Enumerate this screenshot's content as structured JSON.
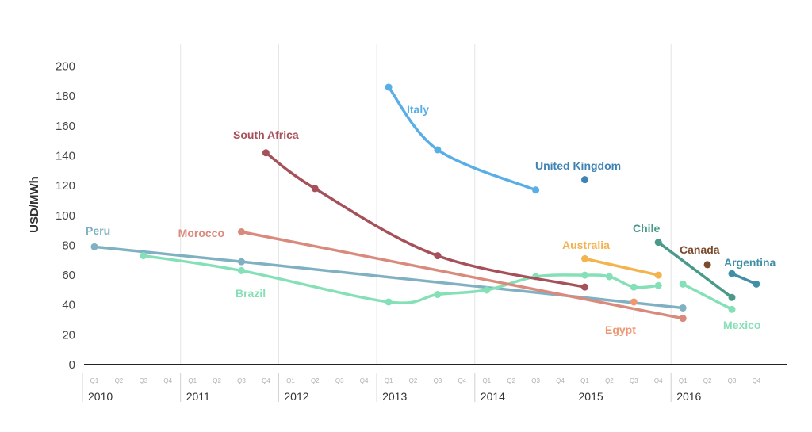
{
  "chart_data": {
    "type": "line",
    "ylabel": "USD/MWh",
    "ylim": [
      0,
      200
    ],
    "yticks": [
      0,
      20,
      40,
      60,
      80,
      100,
      120,
      140,
      160,
      180,
      200
    ],
    "x_years": [
      "2010",
      "2011",
      "2012",
      "2013",
      "2014",
      "2015",
      "2016"
    ],
    "x_quarters": [
      "Q1",
      "Q2",
      "Q3",
      "Q4"
    ],
    "grid": "vertical year lines",
    "series": [
      {
        "name": "Peru",
        "color": "#7fb1c2",
        "points": [
          [
            "2010 Q1",
            79
          ],
          [
            "2011 Q3",
            69
          ],
          [
            "2016 Q1",
            38
          ]
        ]
      },
      {
        "name": "Brazil",
        "color": "#86e0b7",
        "points": [
          [
            "2010 Q3",
            73
          ],
          [
            "2011 Q3",
            63
          ],
          [
            "2013 Q1",
            42
          ],
          [
            "2013 Q3",
            47
          ],
          [
            "2014 Q1",
            50
          ],
          [
            "2014 Q3",
            59
          ],
          [
            "2015 Q1",
            60
          ],
          [
            "2015 Q2",
            59
          ],
          [
            "2015 Q3",
            52
          ],
          [
            "2015 Q4",
            53
          ]
        ]
      },
      {
        "name": "Morocco",
        "color": "#d98a7c",
        "points": [
          [
            "2011 Q3",
            89
          ],
          [
            "2016 Q1",
            31
          ]
        ]
      },
      {
        "name": "South Africa",
        "color": "#a6505a",
        "points": [
          [
            "2011 Q4",
            142
          ],
          [
            "2012 Q2",
            118
          ],
          [
            "2013 Q3",
            73
          ],
          [
            "2015 Q1",
            52
          ]
        ]
      },
      {
        "name": "Italy",
        "color": "#5aaee6",
        "points": [
          [
            "2013 Q1",
            186
          ],
          [
            "2013 Q3",
            144
          ],
          [
            "2014 Q3",
            117
          ]
        ]
      },
      {
        "name": "United Kingdom",
        "color": "#3f83b5",
        "points": [
          [
            "2015 Q1",
            124
          ]
        ]
      },
      {
        "name": "Australia",
        "color": "#f3b34f",
        "points": [
          [
            "2015 Q1",
            71
          ],
          [
            "2015 Q4",
            60
          ]
        ]
      },
      {
        "name": "Egypt",
        "color": "#ee9873",
        "points": [
          [
            "2015 Q3",
            42
          ]
        ]
      },
      {
        "name": "Chile",
        "color": "#4a9a8a",
        "points": [
          [
            "2015 Q4",
            82
          ],
          [
            "2016 Q3",
            45
          ]
        ]
      },
      {
        "name": "Canada",
        "color": "#7a4a2a",
        "points": [
          [
            "2016 Q2",
            67
          ]
        ]
      },
      {
        "name": "Mexico",
        "color": "#86e0b7",
        "points": [
          [
            "2016 Q1",
            54
          ],
          [
            "2016 Q3",
            37
          ]
        ]
      },
      {
        "name": "Argentina",
        "color": "#3f8fa6",
        "points": [
          [
            "2016 Q3",
            61
          ],
          [
            "2016 Q4",
            54
          ]
        ]
      }
    ]
  }
}
